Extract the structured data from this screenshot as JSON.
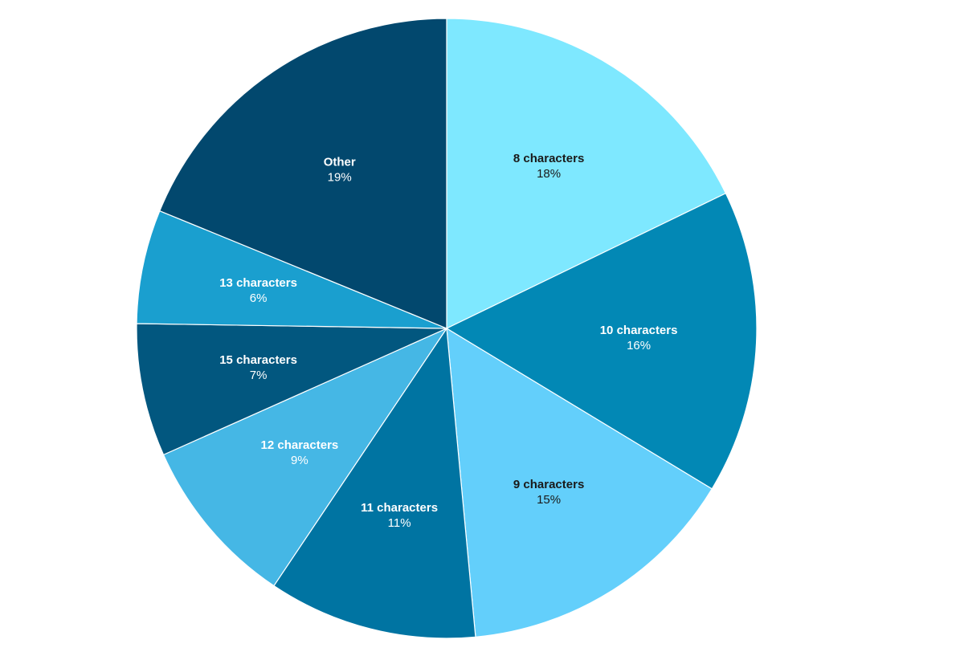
{
  "chart_data": {
    "type": "pie",
    "start_angle_deg": 0,
    "direction": "clockwise",
    "slices": [
      {
        "label": "8 characters",
        "value": 18,
        "value_label": "18%",
        "color": "#7EE8FF",
        "text_color": "#1a1a1a"
      },
      {
        "label": "10 characters",
        "value": 16,
        "value_label": "16%",
        "color": "#0288B5",
        "text_color": "#ffffff"
      },
      {
        "label": "9 characters",
        "value": 15,
        "value_label": "15%",
        "color": "#63CFFB",
        "text_color": "#1a1a1a"
      },
      {
        "label": "11 characters",
        "value": 11,
        "value_label": "11%",
        "color": "#0074A2",
        "text_color": "#ffffff"
      },
      {
        "label": "12 characters",
        "value": 9,
        "value_label": "9%",
        "color": "#45B7E5",
        "text_color": "#ffffff"
      },
      {
        "label": "15 characters",
        "value": 7,
        "value_label": "7%",
        "color": "#02577F",
        "text_color": "#ffffff"
      },
      {
        "label": "13 characters",
        "value": 6,
        "value_label": "6%",
        "color": "#1A9FCF",
        "text_color": "#ffffff"
      },
      {
        "label": "Other",
        "value": 19,
        "value_label": "19%",
        "color": "#02486E",
        "text_color": "#ffffff"
      }
    ]
  }
}
